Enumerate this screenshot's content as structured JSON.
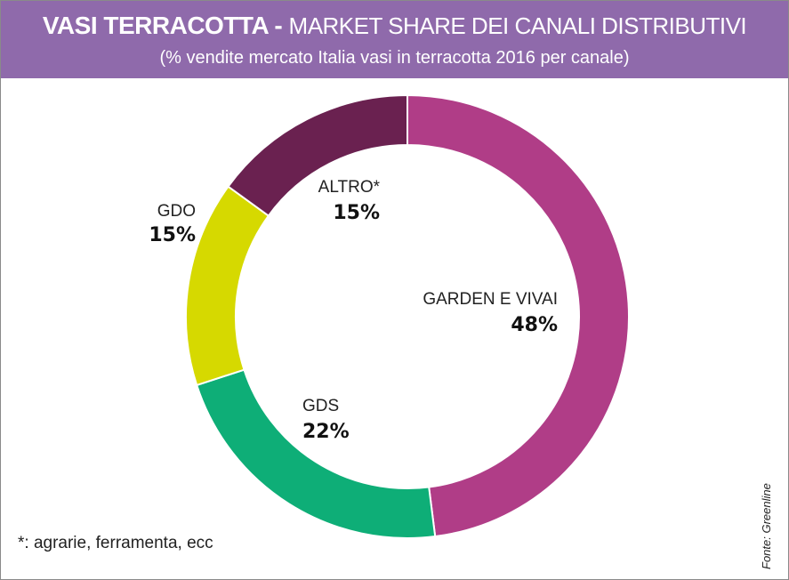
{
  "header": {
    "title_main": "VASI TERRACOTTA",
    "title_sep": " - ",
    "title_rest": "MARKET SHARE DEI CANALI DISTRIBUTIVI",
    "subtitle": "(% vendite mercato Italia vasi in terracotta 2016 per canale)",
    "background_color": "#8f6aab"
  },
  "chart_data": {
    "type": "pie",
    "style": "donut",
    "title": "VASI TERRACOTTA - MARKET SHARE DEI CANALI DISTRIBUTIVI",
    "subtitle": "(% vendite mercato Italia vasi in terracotta 2016 per canale)",
    "categories": [
      "GARDEN E VIVAI",
      "GDS",
      "GDO",
      "ALTRO*"
    ],
    "values": [
      48,
      22,
      15,
      15
    ],
    "value_labels": [
      "48%",
      "22%",
      "15%",
      "15%"
    ],
    "colors": [
      "#b03d87",
      "#0eae77",
      "#d6d900",
      "#6a2150"
    ],
    "legend": "none"
  },
  "footnote": "*: agrarie, ferramenta, ecc",
  "source": "Fonte: Greenline"
}
